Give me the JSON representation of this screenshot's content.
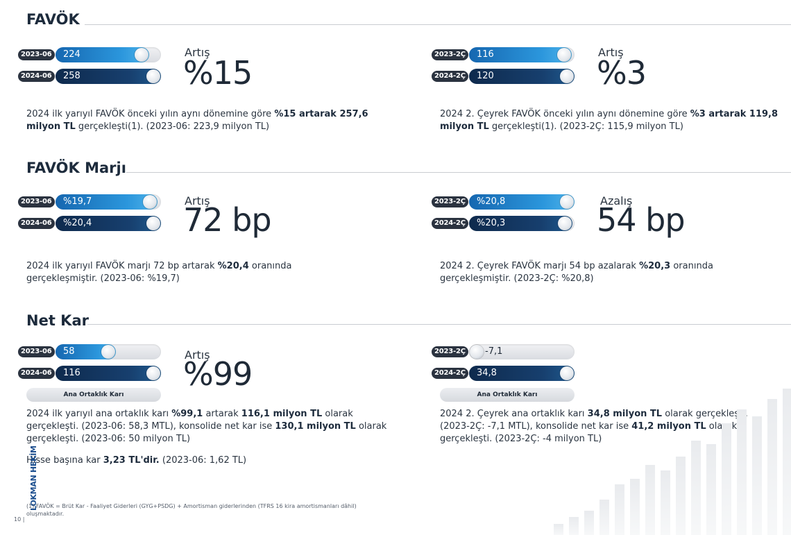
{
  "page_number": "10 |",
  "brand": "LOKMAN HEKİM",
  "footnote": "(1) FAVÖK = Brüt Kar - Faaliyet Giderleri (GYG+PSDG) + Amortisman giderlerinden (TFRS 16 kira amortismanları dâhil) oluşmaktadır.",
  "sections": {
    "favok": {
      "title": "FAVÖK",
      "left": {
        "bars": [
          {
            "period": "2023-06",
            "value": "224",
            "fill_fraction": 0.87
          },
          {
            "period": "2024-06",
            "value": "258",
            "fill_fraction": 1.0
          }
        ],
        "change_label": "Artış",
        "change_value": "%15",
        "desc": {
          "p1": "2024 ilk yarıyıl FAVÖK önceki yılın aynı dönemine göre ",
          "b1": "%15 artarak 257,6 milyon TL",
          "p2": " gerçekleşti(1). (2023-06: 223,9 milyon TL)"
        }
      },
      "right": {
        "bars": [
          {
            "period": "2023-2Ç",
            "value": "116",
            "fill_fraction": 0.97
          },
          {
            "period": "2024-2Ç",
            "value": "120",
            "fill_fraction": 1.0
          }
        ],
        "change_label": "Artış",
        "change_value": "%3",
        "desc": {
          "p1": "2024 2. Çeyrek FAVÖK önceki yılın aynı dönemine göre ",
          "b1": "%3 artarak 119,8 milyon TL",
          "p2": " gerçekleşti(1). (2023-2Ç: 115,9 milyon TL)"
        }
      }
    },
    "margin": {
      "title": "FAVÖK Marjı",
      "left": {
        "bars": [
          {
            "period": "2023-06",
            "value": "%19,7",
            "fill_fraction": 0.965
          },
          {
            "period": "2024-06",
            "value": "%20,4",
            "fill_fraction": 1.0
          }
        ],
        "change_label": "Artış",
        "change_value": "72 bp",
        "desc": {
          "p1": "2024 ilk yarıyıl FAVÖK marjı 72 bp artarak ",
          "b1": "%20,4",
          "p2": " oranında gerçekleşmiştir. (2023-06: %19,7)"
        }
      },
      "right": {
        "bars": [
          {
            "period": "2023-2Ç",
            "value": "%20,8",
            "fill_fraction": 1.0
          },
          {
            "period": "2024-2Ç",
            "value": "%20,3",
            "fill_fraction": 0.975
          }
        ],
        "change_label": "Azalış",
        "change_value": "54 bp",
        "desc": {
          "p1": "2024 2. Çeyrek FAVÖK marjı 54 bp azalarak ",
          "b1": "%20,3",
          "p2": " oranında gerçekleşmiştir. (2023-2Ç: %20,8)"
        }
      }
    },
    "netkar": {
      "title": "Net Kar",
      "left": {
        "bars": [
          {
            "period": "2023-06",
            "value": "58",
            "fill_fraction": 0.5
          },
          {
            "period": "2024-06",
            "value": "116",
            "fill_fraction": 1.0
          }
        ],
        "pill": "Ana Ortaklık Karı",
        "change_label": "Artış",
        "change_value": "%99",
        "desc": {
          "p1": "2024 ilk yarıyıl ana ortaklık karı ",
          "b1": "%99,1",
          "p2": " artarak ",
          "b2": "116,1 milyon TL",
          "p3": " olarak gerçekleşti. (2023-06: 58,3 MTL), konsolide net kar ise ",
          "b3": "130,1 milyon TL",
          "p4": " olarak gerçekleşti. (2023-06: 50 milyon TL)"
        },
        "eps": {
          "p1": "Hisse başına kar ",
          "b1": "3,23 TL'dir.",
          "p2": " (2023-06: 1,62 TL)"
        }
      },
      "right": {
        "bars": [
          {
            "period": "2023-2Ç",
            "value": "-7,1",
            "fill_fraction": 0.0
          },
          {
            "period": "2024-2Ç",
            "value": "34,8",
            "fill_fraction": 1.0
          }
        ],
        "pill": "Ana Ortaklık Karı",
        "desc": {
          "p1": "2024 2. Çeyrek ana ortaklık karı ",
          "b1": "34,8 milyon TL",
          "p2": " olarak gerçekleşti. (2023-2Ç: -7,1 MTL), konsolide net kar ise ",
          "b2": "41,2 milyon TL",
          "p3": " olarak gerçekleşti. (2023-2Ç: -4 milyon TL)"
        }
      }
    }
  }
}
